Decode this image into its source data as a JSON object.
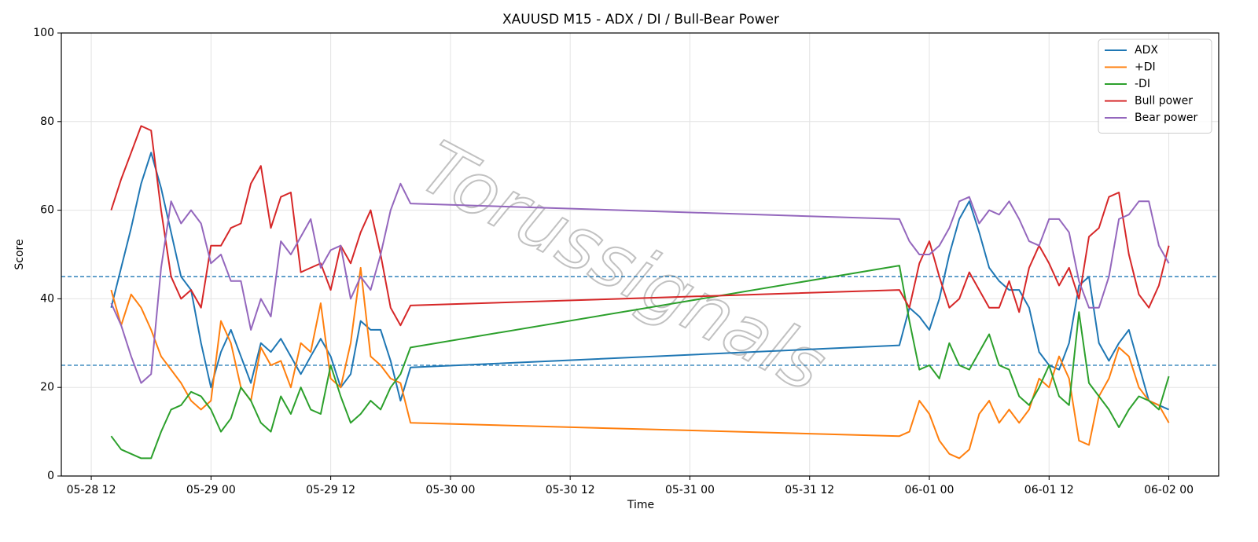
{
  "chart_data": {
    "type": "line",
    "title": "XAUUSD M15 - ADX / DI / Bull-Bear Power",
    "x_label": "Time",
    "y_label": "Score",
    "watermark": "Torussignals",
    "x": [
      "05-28 14",
      "05-28 15",
      "05-28 16",
      "05-28 17",
      "05-28 18",
      "05-28 19",
      "05-28 20",
      "05-28 21",
      "05-28 22",
      "05-28 23",
      "05-29 00",
      "05-29 01",
      "05-29 02",
      "05-29 03",
      "05-29 04",
      "05-29 05",
      "05-29 06",
      "05-29 07",
      "05-29 08",
      "05-29 09",
      "05-29 10",
      "05-29 11",
      "05-29 12",
      "05-29 13",
      "05-29 14",
      "05-29 15",
      "05-29 16",
      "05-29 17",
      "05-29 18",
      "05-29 19",
      "05-29 20",
      "05-31 21",
      "05-31 22",
      "05-31 23",
      "06-01 00",
      "06-01 01",
      "06-01 02",
      "06-01 03",
      "06-01 04",
      "06-01 05",
      "06-01 06",
      "06-01 07",
      "06-01 08",
      "06-01 09",
      "06-01 10",
      "06-01 11",
      "06-01 12",
      "06-01 13",
      "06-01 14",
      "06-01 15",
      "06-01 16",
      "06-01 17",
      "06-01 18",
      "06-01 19",
      "06-01 20",
      "06-01 21",
      "06-01 22",
      "06-01 23",
      "06-02 00"
    ],
    "series": [
      {
        "name": "ADX",
        "color": "#1f77b4",
        "values": [
          38,
          47,
          56,
          66,
          73,
          65,
          55,
          45,
          42,
          30,
          20,
          28,
          33,
          27,
          21,
          30,
          28,
          31,
          27,
          23,
          27,
          31,
          27,
          20,
          23,
          35,
          33,
          33,
          26,
          17,
          24.5,
          29.5,
          38,
          36,
          33,
          40,
          50,
          58,
          62,
          55,
          47,
          44,
          42,
          42,
          38,
          28,
          25,
          24,
          30,
          43,
          45,
          30,
          26,
          30,
          33,
          25,
          17,
          16,
          15
        ]
      },
      {
        "name": "+DI",
        "color": "#ff7f0e",
        "values": [
          42,
          34,
          41,
          38,
          33,
          27,
          24,
          21,
          17,
          15,
          17,
          35,
          30,
          20,
          17,
          29,
          25,
          26,
          20,
          30,
          28,
          39,
          22,
          20,
          30,
          47,
          27,
          25,
          22,
          21,
          12,
          9,
          10,
          17,
          14,
          8,
          5,
          4,
          6,
          14,
          17,
          12,
          15,
          12,
          15,
          22,
          20,
          27,
          22,
          8,
          7,
          18,
          22,
          29,
          27,
          20,
          17,
          16,
          12
        ]
      },
      {
        "name": "-DI",
        "color": "#2ca02c",
        "values": [
          9,
          6,
          5,
          4,
          4,
          10,
          15,
          16,
          19,
          18,
          15,
          10,
          13,
          20,
          17,
          12,
          10,
          18,
          14,
          20,
          15,
          14,
          25,
          18,
          12,
          14,
          17,
          15,
          20,
          23,
          29,
          47.5,
          35,
          24,
          25,
          22,
          30,
          25,
          24,
          28,
          32,
          25,
          24,
          18,
          16,
          20,
          25,
          18,
          16,
          37,
          21,
          18,
          15,
          11,
          15,
          18,
          17,
          15,
          22.5
        ]
      },
      {
        "name": "Bull power",
        "color": "#d62728",
        "values": [
          60,
          67,
          73,
          79,
          78,
          60,
          45,
          40,
          42,
          38,
          52,
          52,
          56,
          57,
          66,
          70,
          56,
          63,
          64,
          46,
          47,
          48,
          42,
          52,
          48,
          55,
          60,
          50,
          38,
          34,
          38.5,
          42,
          38,
          48,
          53,
          45,
          38,
          40,
          46,
          42,
          38,
          38,
          44,
          37,
          47,
          52,
          48,
          43,
          47,
          40,
          54,
          56,
          63,
          64,
          50,
          41,
          38,
          43,
          52
        ]
      },
      {
        "name": "Bear power",
        "color": "#9467bd",
        "values": [
          39,
          34,
          27,
          21,
          23,
          47,
          62,
          57,
          60,
          57,
          48,
          50,
          44,
          44,
          33,
          40,
          36,
          53,
          50,
          54,
          58,
          47,
          51,
          52,
          40,
          45,
          42,
          50,
          60,
          66,
          61.5,
          58,
          53,
          50,
          50,
          52,
          56,
          62,
          63,
          57,
          60,
          59,
          62,
          58,
          53,
          52,
          58,
          58,
          55,
          44,
          38,
          38,
          45,
          58,
          59,
          62,
          62,
          52,
          48
        ]
      }
    ],
    "hlines": [
      25,
      45
    ],
    "hline_color": "#1f77b4",
    "xlim": [
      "05-28 09",
      "06-02 05"
    ],
    "xticks": [
      "05-28 12",
      "05-29 00",
      "05-29 12",
      "05-30 00",
      "05-30 12",
      "05-31 00",
      "05-31 12",
      "06-01 00",
      "06-01 12",
      "06-02 00"
    ],
    "ylim": [
      0,
      100
    ],
    "yticks": [
      0,
      20,
      40,
      60,
      80,
      100
    ],
    "grid": true,
    "legend": "upper right"
  }
}
